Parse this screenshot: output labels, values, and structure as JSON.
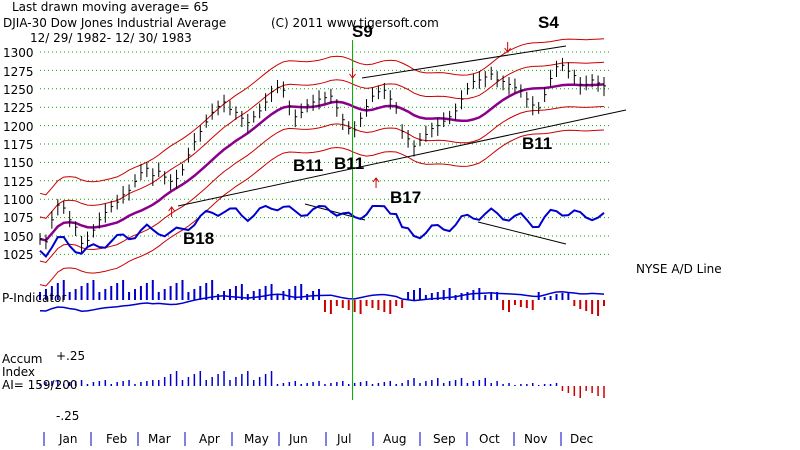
{
  "header": {
    "moving_average_note": "Last drawn moving average= 65",
    "index_name": "DJIA-30  Dow Jones Industrial Average",
    "copyright": "(C) 2011 www.tigersoft.com",
    "date_range": "12/ 29/ 1982- 12/ 30/ 1983"
  },
  "colors": {
    "price": "#000000",
    "moving_average": "#8b008b",
    "bands": "#cc0000",
    "ad_line": "#0000cc",
    "positive": "#0000cc",
    "negative": "#cc0000",
    "gridline": "#00aa00",
    "signal_line": "#00aa00"
  },
  "chart_data": {
    "type": "line",
    "title": "DJIA-30 Dow Jones Industrial Average",
    "y_ticks": [
      "1300",
      "1275",
      "1250",
      "1225",
      "1200",
      "1175",
      "1150",
      "1125",
      "1100",
      "1075",
      "1050",
      "1025"
    ],
    "ylim": [
      1010,
      1310
    ],
    "months": [
      "Jan",
      "Feb",
      "Mar",
      "Apr",
      "May",
      "Jun",
      "Jul",
      "Aug",
      "Sep",
      "Oct",
      "Nov",
      "Dec"
    ],
    "price_close": [
      1046,
      1042,
      1072,
      1092,
      1088,
      1072,
      1062,
      1040,
      1044,
      1058,
      1072,
      1082,
      1090,
      1096,
      1106,
      1112,
      1124,
      1136,
      1142,
      1132,
      1138,
      1130,
      1124,
      1128,
      1140,
      1160,
      1178,
      1192,
      1205,
      1218,
      1226,
      1232,
      1222,
      1218,
      1210,
      1204,
      1212,
      1220,
      1232,
      1246,
      1252,
      1248,
      1226,
      1212,
      1218,
      1228,
      1232,
      1236,
      1238,
      1240,
      1224,
      1208,
      1196,
      1194,
      1210,
      1226,
      1240,
      1246,
      1248,
      1236,
      1224,
      1192,
      1182,
      1172,
      1180,
      1188,
      1196,
      1200,
      1206,
      1212,
      1220,
      1236,
      1250,
      1260,
      1262,
      1266,
      1270,
      1262,
      1260,
      1256,
      1252,
      1248,
      1236,
      1228,
      1224,
      1242,
      1264,
      1280,
      1282,
      1274,
      1268,
      1256,
      1256,
      1262,
      1258,
      1254
    ],
    "signals": [
      {
        "label": "S9",
        "month_pos": 6.65
      },
      {
        "label": "S4",
        "month_pos": 9.95
      },
      {
        "label": "B18",
        "month_pos": 2.8
      },
      {
        "label": "B11",
        "month_pos": 5.35
      },
      {
        "label": "B11",
        "month_pos": 5.9
      },
      {
        "label": "B17",
        "month_pos": 7.15
      },
      {
        "label": "B11",
        "month_pos": 9.3
      }
    ],
    "panels": {
      "ad_line_label": "NYSE A/D Line",
      "p_indicator_label": "P-Indicator",
      "accum_label_1": "Accum",
      "accum_label_2": "Index",
      "accum_ai": "AI= 159/200",
      "accum_top_tick": "+.25",
      "accum_bottom_tick": "-.25"
    }
  }
}
